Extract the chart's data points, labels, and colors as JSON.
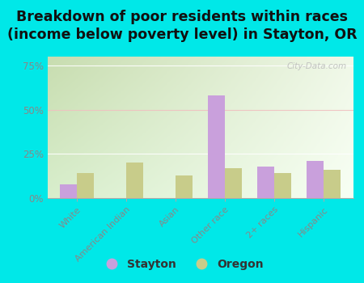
{
  "title": "Breakdown of poor residents within races\n(income below poverty level) in Stayton, OR",
  "categories": [
    "White",
    "American Indian",
    "Asian",
    "Other race",
    "2+ races",
    "Hispanic"
  ],
  "stayton_values": [
    8,
    0,
    0,
    58,
    18,
    21
  ],
  "oregon_values": [
    14,
    20,
    13,
    17,
    14,
    16
  ],
  "stayton_color": "#c9a0dc",
  "oregon_color": "#c8cc8a",
  "background_color": "#00e8e8",
  "ylim": [
    0,
    80
  ],
  "yticks": [
    0,
    25,
    50,
    75
  ],
  "ytick_labels": [
    "0%",
    "25%",
    "50%",
    "75%"
  ],
  "title_fontsize": 12.5,
  "bar_width": 0.35,
  "legend_labels": [
    "Stayton",
    "Oregon"
  ],
  "watermark": "City-Data.com",
  "grad_colors": [
    "#c8ddb0",
    "#e8f5e0",
    "#f5fff0"
  ],
  "tick_color": "#888888",
  "spine_color": "#aaaaaa"
}
